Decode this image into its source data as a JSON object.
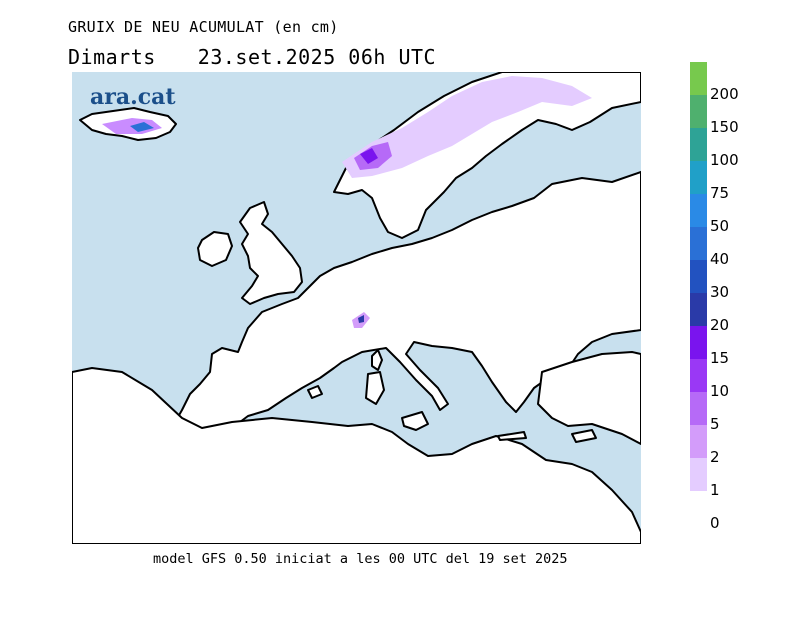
{
  "header": {
    "title": "GRUIX DE NEU ACUMULAT (en cm)",
    "day": "Dimarts",
    "datetime": "23.set.2025 06h UTC"
  },
  "logo_text": "ara.cat",
  "footer": "model GFS 0.50 iniciat a les 00 UTC del 19 set 2025",
  "colors": {
    "sea": "#c8e0ee",
    "land": "#ffffff",
    "coast": "#000000",
    "snow_light": "#e4ccff",
    "snow_mid": "#c98cff",
    "snow_dark": "#9a38f5",
    "snow_max": "#3020b0"
  },
  "legend": {
    "labels": [
      "200",
      "150",
      "100",
      "75",
      "50",
      "40",
      "30",
      "20",
      "15",
      "10",
      "5",
      "2",
      "1",
      "0"
    ],
    "swatches": [
      "#77c94d",
      "#4fb06e",
      "#2ea396",
      "#20a0c8",
      "#2a8ae6",
      "#2a70d6",
      "#2252c0",
      "#2a3aa8",
      "#7a14ee",
      "#9a38f5",
      "#b66af7",
      "#d39cfa",
      "#e4ccff"
    ]
  }
}
